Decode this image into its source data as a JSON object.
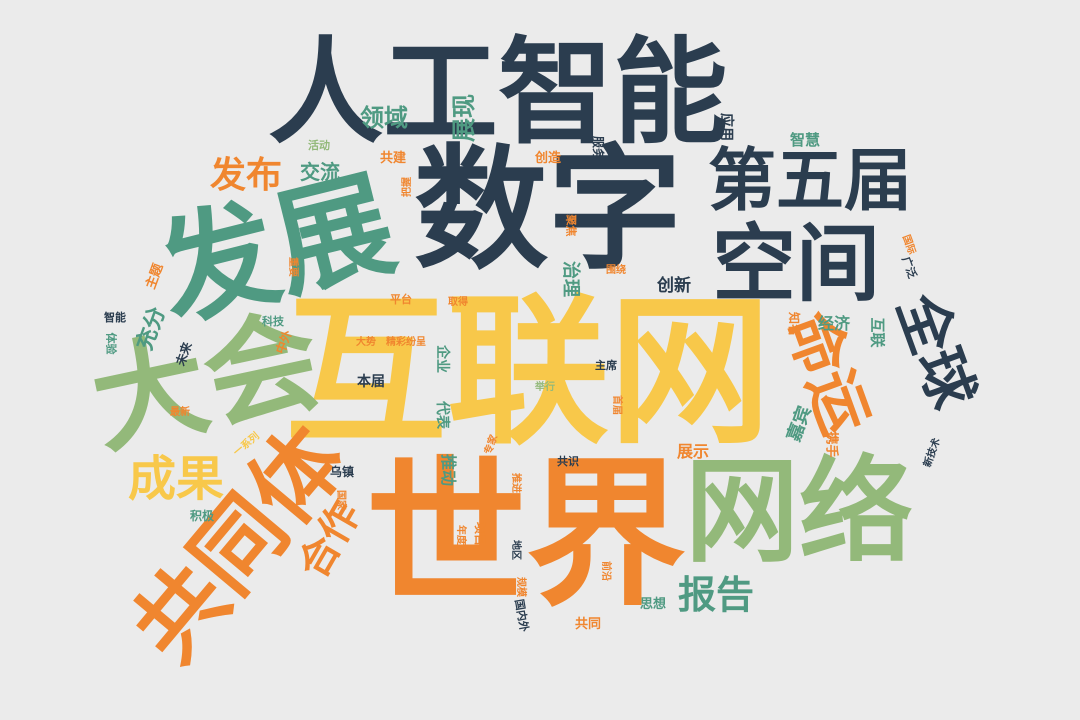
{
  "palette": {
    "navy": "#2b3d4f",
    "orange": "#f0862f",
    "yellow": "#f8c84a",
    "teal": "#4f9a82",
    "sage": "#93b97a",
    "background": "#ebebeb"
  },
  "words": [
    {
      "text": "互联网",
      "color": "yellow",
      "weight": 100
    },
    {
      "text": "世界",
      "color": "orange",
      "weight": 98
    },
    {
      "text": "数字",
      "color": "navy",
      "weight": 96
    },
    {
      "text": "人工智能",
      "color": "navy",
      "weight": 80
    },
    {
      "text": "发展",
      "color": "teal",
      "weight": 78
    },
    {
      "text": "网络",
      "color": "sage",
      "weight": 72
    },
    {
      "text": "大会",
      "color": "sage",
      "weight": 70
    },
    {
      "text": "共同体",
      "color": "orange",
      "weight": 64
    },
    {
      "text": "空间",
      "color": "navy",
      "weight": 60
    },
    {
      "text": "第五届",
      "color": "navy",
      "weight": 55
    },
    {
      "text": "命运",
      "color": "orange",
      "weight": 52
    },
    {
      "text": "全球",
      "color": "navy",
      "weight": 48
    },
    {
      "text": "成果",
      "color": "yellow",
      "weight": 40
    },
    {
      "text": "合作",
      "color": "orange",
      "weight": 38
    },
    {
      "text": "报告",
      "color": "teal",
      "weight": 34
    },
    {
      "text": "发布",
      "color": "orange",
      "weight": 30
    },
    {
      "text": "领域",
      "color": "teal",
      "weight": 24
    },
    {
      "text": "展现",
      "color": "teal",
      "weight": 24
    },
    {
      "text": "充分",
      "color": "teal",
      "weight": 22
    },
    {
      "text": "交流",
      "color": "teal",
      "weight": 20
    },
    {
      "text": "创新",
      "color": "navy",
      "weight": 18
    },
    {
      "text": "治理",
      "color": "teal",
      "weight": 18
    },
    {
      "text": "嘉宾",
      "color": "teal",
      "weight": 18
    },
    {
      "text": "展示",
      "color": "orange",
      "weight": 16
    },
    {
      "text": "推动",
      "color": "teal",
      "weight": 16
    },
    {
      "text": "经济",
      "color": "teal",
      "weight": 16
    },
    {
      "text": "智慧",
      "color": "teal",
      "weight": 15
    },
    {
      "text": "互联",
      "color": "teal",
      "weight": 15
    },
    {
      "text": "应用",
      "color": "navy",
      "weight": 14
    },
    {
      "text": "本届",
      "color": "navy",
      "weight": 14
    },
    {
      "text": "代表",
      "color": "teal",
      "weight": 14
    },
    {
      "text": "企业",
      "color": "teal",
      "weight": 14
    },
    {
      "text": "携手",
      "color": "orange",
      "weight": 13
    },
    {
      "text": "主题",
      "color": "orange",
      "weight": 13
    },
    {
      "text": "共建",
      "color": "orange",
      "weight": 13
    },
    {
      "text": "创造",
      "color": "orange",
      "weight": 13
    },
    {
      "text": "思想",
      "color": "teal",
      "weight": 13
    },
    {
      "text": "共同",
      "color": "orange",
      "weight": 13
    },
    {
      "text": "乌镇",
      "color": "navy",
      "weight": 12
    },
    {
      "text": "积极",
      "color": "teal",
      "weight": 12
    },
    {
      "text": "未来",
      "color": "navy",
      "weight": 12
    },
    {
      "text": "知名",
      "color": "orange",
      "weight": 12
    },
    {
      "text": "项目",
      "color": "orange",
      "weight": 12
    },
    {
      "text": "服务",
      "color": "navy",
      "weight": 12
    },
    {
      "text": "中外",
      "color": "orange",
      "weight": 12
    },
    {
      "text": "活动",
      "color": "sage",
      "weight": 11
    },
    {
      "text": "科技",
      "color": "teal",
      "weight": 11
    },
    {
      "text": "广泛",
      "color": "navy",
      "weight": 11
    },
    {
      "text": "共识",
      "color": "navy",
      "weight": 11
    },
    {
      "text": "主席",
      "color": "navy",
      "weight": 11
    },
    {
      "text": "平台",
      "color": "orange",
      "weight": 11
    },
    {
      "text": "聚焦",
      "color": "orange",
      "weight": 11
    },
    {
      "text": "国内外",
      "color": "navy",
      "weight": 11
    },
    {
      "text": "体验",
      "color": "teal",
      "weight": 11
    },
    {
      "text": "智能",
      "color": "navy",
      "weight": 11
    },
    {
      "text": "最新",
      "color": "orange",
      "weight": 10
    },
    {
      "text": "重要",
      "color": "orange",
      "weight": 10
    },
    {
      "text": "举行",
      "color": "sage",
      "weight": 10
    },
    {
      "text": "取得",
      "color": "orange",
      "weight": 10
    },
    {
      "text": "围绕",
      "color": "orange",
      "weight": 10
    },
    {
      "text": "精彩纷呈",
      "color": "orange",
      "weight": 10
    },
    {
      "text": "大势",
      "color": "orange",
      "weight": 10
    },
    {
      "text": "新技术",
      "color": "navy",
      "weight": 10
    },
    {
      "text": "国际",
      "color": "orange",
      "weight": 10
    },
    {
      "text": "把握",
      "color": "orange",
      "weight": 10
    },
    {
      "text": "一系列",
      "color": "yellow",
      "weight": 10
    },
    {
      "text": "专家",
      "color": "orange",
      "weight": 10
    },
    {
      "text": "年度",
      "color": "orange",
      "weight": 10
    },
    {
      "text": "地区",
      "color": "navy",
      "weight": 10
    },
    {
      "text": "规模",
      "color": "orange",
      "weight": 10
    },
    {
      "text": "推进",
      "color": "orange",
      "weight": 10
    },
    {
      "text": "前沿",
      "color": "orange",
      "weight": 10
    },
    {
      "text": "国家",
      "color": "orange",
      "weight": 10
    },
    {
      "text": "首届",
      "color": "orange",
      "weight": 10
    }
  ]
}
